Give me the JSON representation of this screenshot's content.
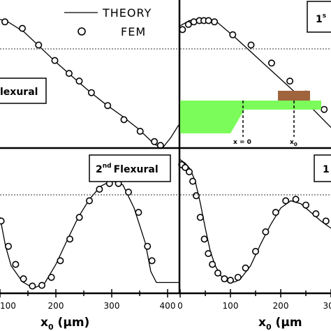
{
  "legend": {
    "theory_label": "THEORY",
    "fem_label": "FEM"
  },
  "panels": {
    "top_left": {
      "label": "lexural"
    },
    "top_right": {
      "label": "1",
      "label_sup": "s"
    },
    "bottom_left": {
      "label": "Flexural",
      "label_prefix": "2",
      "label_sup": "nd"
    },
    "bottom_right": {
      "label": "1"
    }
  },
  "inset": {
    "label_origin": "x = 0",
    "label_x0": "x",
    "label_x0_sub": "0",
    "beam_color": "#7CFC5A",
    "probe_color": "#A0643C"
  },
  "axes": {
    "xlabel_left": "x",
    "xlabel_left_sub": "0",
    "xlabel_left_unit": " (μm)",
    "xlabel_right": "x",
    "xlabel_right_sub": "0",
    "xlabel_right_unit": " (μm",
    "xticks_left": [
      "100",
      "200",
      "300",
      "400"
    ],
    "xticks_right": [
      "0",
      "100",
      "200",
      "300"
    ]
  },
  "chart_data": [
    {
      "type": "line",
      "panel": "top-left",
      "xlim": [
        -20,
        420
      ],
      "ylim": [
        0,
        1.15
      ],
      "series": [
        {
          "name": "THEORY",
          "x": [
            -20,
            0,
            40,
            80,
            120,
            160,
            200,
            240,
            280,
            320,
            360,
            380,
            400,
            420
          ],
          "y": [
            1.0,
            0.98,
            0.9,
            0.78,
            0.66,
            0.55,
            0.44,
            0.34,
            0.25,
            0.15,
            0.03,
            0.0,
            0.08,
            0.18
          ]
        },
        {
          "name": "FEM",
          "x": [
            -8,
            35,
            75,
            115,
            150,
            175,
            205,
            245,
            285,
            325,
            360,
            375
          ],
          "y": [
            0.98,
            0.93,
            0.8,
            0.68,
            0.58,
            0.52,
            0.43,
            0.33,
            0.22,
            0.13,
            0.05,
            0.02
          ]
        }
      ]
    },
    {
      "type": "line",
      "panel": "top-right",
      "xlim": [
        0,
        330
      ],
      "ylim": [
        0,
        1.15
      ],
      "series": [
        {
          "name": "THEORY",
          "x": [
            0,
            20,
            40,
            60,
            80,
            120,
            160,
            200,
            240,
            280,
            330
          ],
          "y": [
            0.95,
            0.99,
            1.0,
            1.0,
            0.98,
            0.86,
            0.73,
            0.6,
            0.47,
            0.34,
            0.16
          ]
        },
        {
          "name": "FEM",
          "x": [
            5,
            18,
            30,
            42,
            52,
            62,
            75,
            115,
            155,
            200,
            240,
            275,
            315
          ],
          "y": [
            0.92,
            0.96,
            0.98,
            0.99,
            0.99,
            0.99,
            0.98,
            0.88,
            0.8,
            0.66,
            0.52,
            0.42,
            0.3
          ]
        }
      ]
    },
    {
      "type": "line",
      "panel": "bottom-left",
      "xlim": [
        100,
        420
      ],
      "ylim": [
        -1.0,
        1.0
      ],
      "series": [
        {
          "name": "THEORY",
          "x": [
            100,
            110,
            120,
            140,
            160,
            180,
            200,
            220,
            240,
            260,
            280,
            300,
            320,
            340,
            360,
            370,
            380,
            400,
            420
          ],
          "y": [
            0.05,
            -0.35,
            -0.62,
            -0.84,
            -0.93,
            -0.86,
            -0.6,
            -0.27,
            0.05,
            0.3,
            0.48,
            0.56,
            0.5,
            0.18,
            -0.3,
            -0.7,
            -0.85,
            -0.85,
            -0.85
          ]
        },
        {
          "name": "FEM",
          "x": [
            102,
            115,
            128,
            142,
            158,
            175,
            192,
            208,
            225,
            242,
            260,
            278,
            296,
            312,
            330,
            348,
            364,
            372
          ],
          "y": [
            0.0,
            -0.35,
            -0.6,
            -0.8,
            -0.9,
            -0.89,
            -0.78,
            -0.55,
            -0.25,
            0.05,
            0.28,
            0.44,
            0.52,
            0.52,
            0.4,
            0.12,
            -0.35,
            -0.55
          ]
        }
      ]
    },
    {
      "type": "line",
      "panel": "bottom-right",
      "xlim": [
        0,
        300
      ],
      "ylim": [
        -1.0,
        1.0
      ],
      "series": [
        {
          "name": "THEORY",
          "x": [
            0,
            10,
            20,
            30,
            40,
            50,
            60,
            70,
            80,
            90,
            100,
            110,
            120,
            140,
            160,
            180,
            200,
            220,
            240,
            260,
            280,
            300
          ],
          "y": [
            0.85,
            0.8,
            0.72,
            0.55,
            0.25,
            -0.1,
            -0.42,
            -0.62,
            -0.75,
            -0.82,
            -0.85,
            -0.84,
            -0.8,
            -0.62,
            -0.32,
            -0.05,
            0.18,
            0.28,
            0.24,
            0.12,
            0.0,
            -0.1
          ]
        },
        {
          "name": "FEM",
          "x": [
            3,
            10,
            18,
            25,
            32,
            40,
            48,
            56,
            64,
            75,
            88,
            100,
            115,
            130,
            150,
            170,
            190,
            210,
            230,
            250,
            270,
            290
          ],
          "y": [
            0.78,
            0.74,
            0.68,
            0.55,
            0.35,
            0.05,
            -0.25,
            -0.45,
            -0.6,
            -0.72,
            -0.8,
            -0.82,
            -0.78,
            -0.65,
            -0.42,
            -0.15,
            0.12,
            0.28,
            0.3,
            0.22,
            0.1,
            0.0
          ]
        }
      ]
    }
  ]
}
